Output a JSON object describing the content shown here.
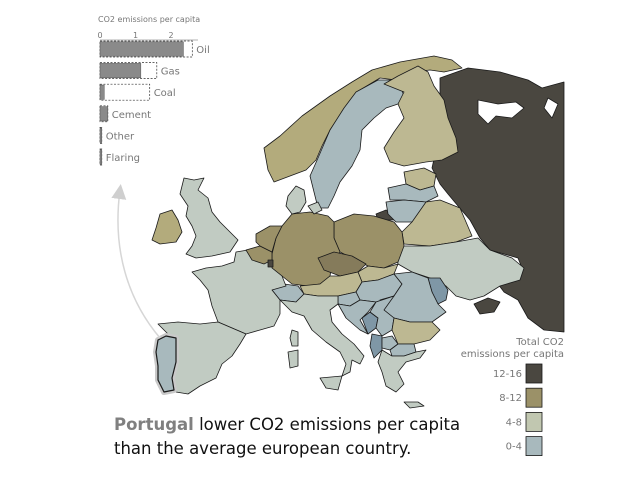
{
  "bar_panel": {
    "title": "CO2 emissions per capita",
    "ticks": [
      "0",
      "1",
      "2"
    ],
    "rows": [
      {
        "label": "Oil",
        "country": 2.35,
        "europe": 2.6
      },
      {
        "label": "Gas",
        "country": 1.15,
        "europe": 1.6
      },
      {
        "label": "Coal",
        "country": 0.12,
        "europe": 1.4
      },
      {
        "label": "Cement",
        "country": 0.22,
        "europe": 0.22
      },
      {
        "label": "Other",
        "country": 0.05,
        "europe": 0.05
      },
      {
        "label": "Flaring",
        "country": 0.05,
        "europe": 0.05
      }
    ]
  },
  "legend": {
    "title_line1": "Total CO2",
    "title_line2": "emissions per capita",
    "classes": [
      {
        "label": "12-16",
        "color": "#4a4740"
      },
      {
        "label": "8-12",
        "color": "#9b9168"
      },
      {
        "label": "4-8",
        "color": "#c1c7b0"
      },
      {
        "label": "0-4",
        "color": "#a8b9bd"
      }
    ]
  },
  "caption": {
    "country": "Portugal",
    "line1_rest": "lower CO2 emissions per capita",
    "line2": "than the average european country."
  },
  "map": {
    "highlighted_country": "Portugal",
    "colors": {
      "high": "#4a4740",
      "upper_mid": "#9b9168",
      "olive": "#b3ab7c",
      "khaki": "#bdb892",
      "sage": "#c1cbc2",
      "pale_blue": "#a8b9bd",
      "steel_blue": "#7f97a6",
      "brown": "#857b5b"
    }
  }
}
